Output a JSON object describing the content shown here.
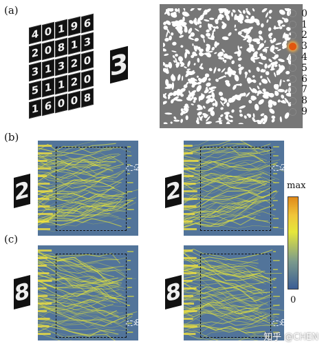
{
  "labels": {
    "a": "(a)",
    "b": "(b)",
    "c": "(c)"
  },
  "digit_grid": [
    [
      "4",
      "0",
      "1",
      "9",
      "6"
    ],
    [
      "2",
      "0",
      "8",
      "1",
      "3"
    ],
    [
      "3",
      "1",
      "3",
      "2",
      "0"
    ],
    [
      "5",
      "1",
      "1",
      "2",
      "0"
    ],
    [
      "1",
      "6",
      "0",
      "0",
      "8"
    ]
  ],
  "input_digit": "3",
  "class_list": [
    "0",
    "1",
    "2",
    "3",
    "4",
    "5",
    "6",
    "7",
    "8",
    "9"
  ],
  "active_class": "3",
  "panels": [
    {
      "digit": "2",
      "detector": "2"
    },
    {
      "digit": "2",
      "detector": "2"
    },
    {
      "digit": "8",
      "detector": "8"
    },
    {
      "digit": "8",
      "detector": "8"
    }
  ],
  "colorbar": {
    "max": "max",
    "min": "0"
  },
  "watermark": "知乎 @CHEN",
  "colors": {
    "field_bg": "#52749a",
    "ray": "#e6e63a",
    "mask_bg": "#777777",
    "active": "#e0560f"
  }
}
